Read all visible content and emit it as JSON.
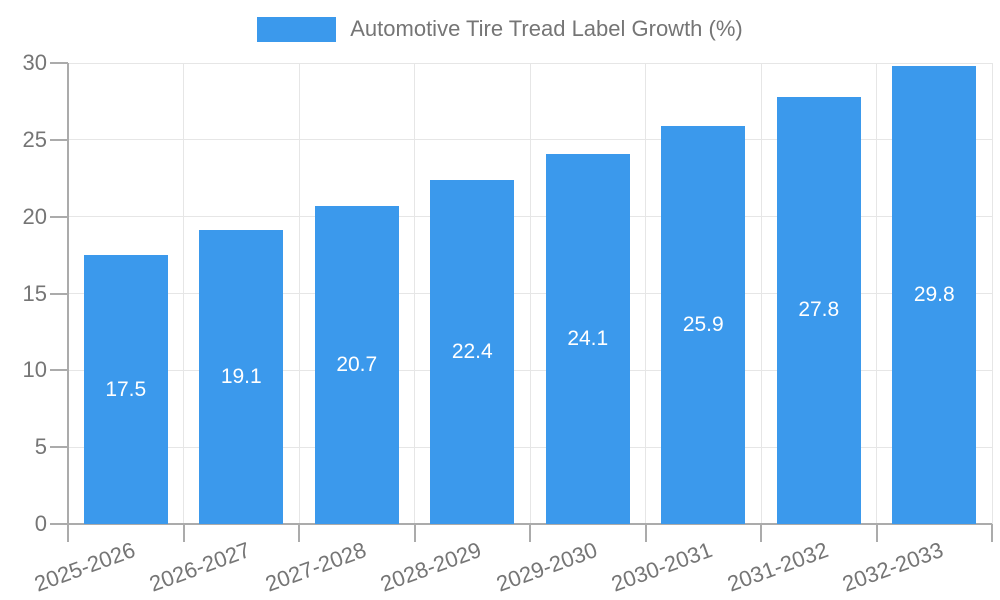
{
  "chart_data": {
    "type": "bar",
    "title": "",
    "legend": "Automotive Tire Tread Label Growth (%)",
    "legend_position": "top",
    "categories": [
      "2025-2026",
      "2026-2027",
      "2027-2028",
      "2028-2029",
      "2029-2030",
      "2030-2031",
      "2031-2032",
      "2032-2033"
    ],
    "values": [
      17.5,
      19.1,
      20.7,
      22.4,
      24.1,
      25.9,
      27.8,
      29.8
    ],
    "value_labels": [
      "17.5",
      "19.1",
      "20.7",
      "22.4",
      "24.1",
      "25.9",
      "27.8",
      "29.8"
    ],
    "xlabel": "",
    "ylabel": "",
    "ylim": [
      0,
      30
    ],
    "yticks": [
      0,
      5,
      10,
      15,
      20,
      25,
      30
    ],
    "grid": true,
    "colors": {
      "bar": "#3B99EC",
      "grid": "#E6E6E6",
      "axis": "#ABABAB",
      "tick_text": "#757575",
      "bar_label": "#FFFFFF",
      "background": "#FFFFFF"
    }
  }
}
